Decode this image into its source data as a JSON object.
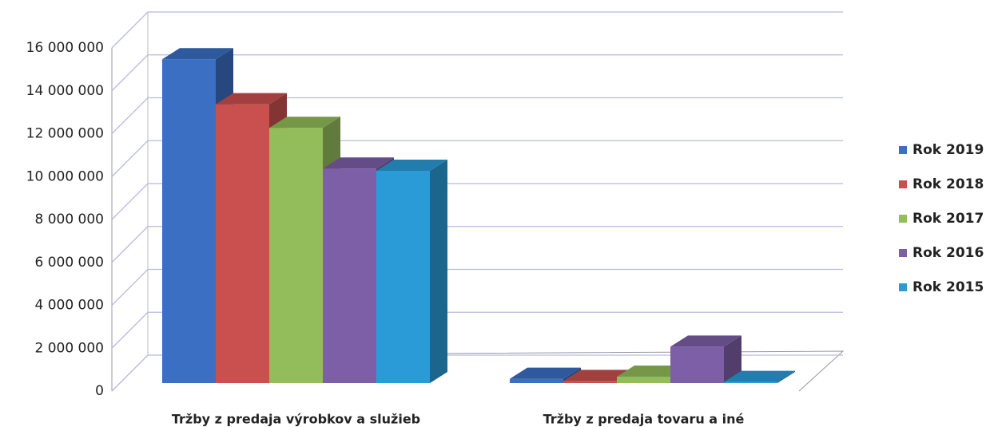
{
  "chart_data": {
    "type": "bar3d",
    "categories": [
      "Tržby z predaja výrobkov a služieb",
      "Tržby z predaja tovaru a iné"
    ],
    "series": [
      {
        "name": "Rok 2019",
        "color": "#3a6fc4",
        "values": [
          15100000,
          200000
        ]
      },
      {
        "name": "Rok 2018",
        "color": "#c9504f",
        "values": [
          13000000,
          100000
        ]
      },
      {
        "name": "Rok 2017",
        "color": "#93bd5a",
        "values": [
          11900000,
          300000
        ]
      },
      {
        "name": "Rok 2016",
        "color": "#7d5fa8",
        "values": [
          10000000,
          1700000
        ]
      },
      {
        "name": "Rok 2015",
        "color": "#2b9bd8",
        "values": [
          9900000,
          50000
        ]
      }
    ],
    "ylim": [
      0,
      16000000
    ],
    "yticks": [
      0,
      {
        "value": 2000000,
        "label": "2 000 000"
      },
      {
        "value": 4000000,
        "label": "4 000 000"
      },
      {
        "value": 6000000,
        "label": "6 000 000"
      },
      {
        "value": 8000000,
        "label": "8 000 000"
      },
      {
        "value": 10000000,
        "label": "10 000 000"
      },
      {
        "value": 12000000,
        "label": "12 000 000"
      },
      {
        "value": 14000000,
        "label": "14 000 000"
      },
      {
        "value": 16000000,
        "label": "16 000 000"
      }
    ],
    "grid": true,
    "legend": "right"
  }
}
